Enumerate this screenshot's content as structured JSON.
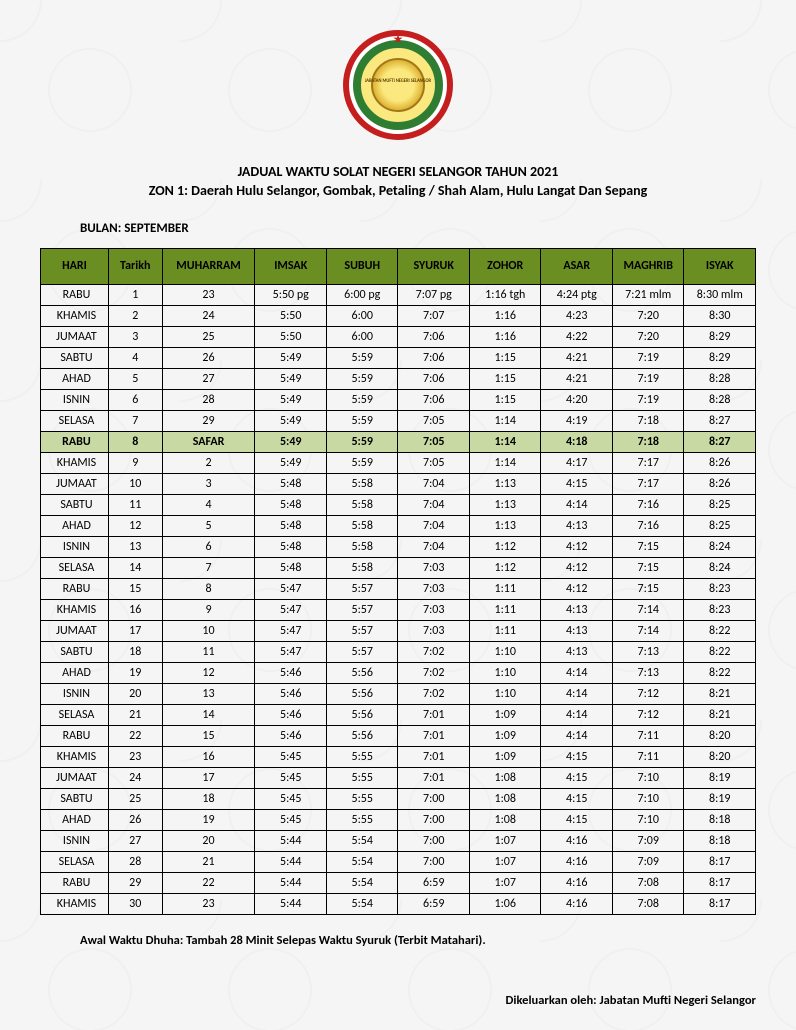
{
  "title_line1": "JADUAL WAKTU SOLAT NEGERI SELANGOR TAHUN 2021",
  "title_line2": "ZON 1: Daerah Hulu Selangor, Gombak, Petaling / Shah Alam, Hulu Langat Dan Sepang",
  "month_label": "BULAN: SEPTEMBER",
  "logo_inner_text": "JABATAN MUFTI NEGERI SELANGOR",
  "columns": [
    "HARI",
    "Tarikh",
    "MUHARRAM",
    "IMSAK",
    "SUBUH",
    "SYURUK",
    "ZOHOR",
    "ASAR",
    "MAGHRIB",
    "ISYAK"
  ],
  "highlight_row_index": 7,
  "rows": [
    [
      "RABU",
      "1",
      "23",
      "5:50 pg",
      "6:00 pg",
      "7:07 pg",
      "1:16 tgh",
      "4:24 ptg",
      "7:21 mlm",
      "8:30 mlm"
    ],
    [
      "KHAMIS",
      "2",
      "24",
      "5:50",
      "6:00",
      "7:07",
      "1:16",
      "4:23",
      "7:20",
      "8:30"
    ],
    [
      "JUMAAT",
      "3",
      "25",
      "5:50",
      "6:00",
      "7:06",
      "1:16",
      "4:22",
      "7:20",
      "8:29"
    ],
    [
      "SABTU",
      "4",
      "26",
      "5:49",
      "5:59",
      "7:06",
      "1:15",
      "4:21",
      "7:19",
      "8:29"
    ],
    [
      "AHAD",
      "5",
      "27",
      "5:49",
      "5:59",
      "7:06",
      "1:15",
      "4:21",
      "7:19",
      "8:28"
    ],
    [
      "ISNIN",
      "6",
      "28",
      "5:49",
      "5:59",
      "7:06",
      "1:15",
      "4:20",
      "7:19",
      "8:28"
    ],
    [
      "SELASA",
      "7",
      "29",
      "5:49",
      "5:59",
      "7:05",
      "1:14",
      "4:19",
      "7:18",
      "8:27"
    ],
    [
      "RABU",
      "8",
      "SAFAR",
      "5:49",
      "5:59",
      "7:05",
      "1:14",
      "4:18",
      "7:18",
      "8:27"
    ],
    [
      "KHAMIS",
      "9",
      "2",
      "5:49",
      "5:59",
      "7:05",
      "1:14",
      "4:17",
      "7:17",
      "8:26"
    ],
    [
      "JUMAAT",
      "10",
      "3",
      "5:48",
      "5:58",
      "7:04",
      "1:13",
      "4:15",
      "7:17",
      "8:26"
    ],
    [
      "SABTU",
      "11",
      "4",
      "5:48",
      "5:58",
      "7:04",
      "1:13",
      "4:14",
      "7:16",
      "8:25"
    ],
    [
      "AHAD",
      "12",
      "5",
      "5:48",
      "5:58",
      "7:04",
      "1:13",
      "4:13",
      "7:16",
      "8:25"
    ],
    [
      "ISNIN",
      "13",
      "6",
      "5:48",
      "5:58",
      "7:04",
      "1:12",
      "4:12",
      "7:15",
      "8:24"
    ],
    [
      "SELASA",
      "14",
      "7",
      "5:48",
      "5:58",
      "7:03",
      "1:12",
      "4:12",
      "7:15",
      "8:24"
    ],
    [
      "RABU",
      "15",
      "8",
      "5:47",
      "5:57",
      "7:03",
      "1:11",
      "4:12",
      "7:15",
      "8:23"
    ],
    [
      "KHAMIS",
      "16",
      "9",
      "5:47",
      "5:57",
      "7:03",
      "1:11",
      "4:13",
      "7:14",
      "8:23"
    ],
    [
      "JUMAAT",
      "17",
      "10",
      "5:47",
      "5:57",
      "7:03",
      "1:11",
      "4:13",
      "7:14",
      "8:22"
    ],
    [
      "SABTU",
      "18",
      "11",
      "5:47",
      "5:57",
      "7:02",
      "1:10",
      "4:13",
      "7:13",
      "8:22"
    ],
    [
      "AHAD",
      "19",
      "12",
      "5:46",
      "5:56",
      "7:02",
      "1:10",
      "4:14",
      "7:13",
      "8:22"
    ],
    [
      "ISNIN",
      "20",
      "13",
      "5:46",
      "5:56",
      "7:02",
      "1:10",
      "4:14",
      "7:12",
      "8:21"
    ],
    [
      "SELASA",
      "21",
      "14",
      "5:46",
      "5:56",
      "7:01",
      "1:09",
      "4:14",
      "7:12",
      "8:21"
    ],
    [
      "RABU",
      "22",
      "15",
      "5:46",
      "5:56",
      "7:01",
      "1:09",
      "4:14",
      "7:11",
      "8:20"
    ],
    [
      "KHAMIS",
      "23",
      "16",
      "5:45",
      "5:55",
      "7:01",
      "1:09",
      "4:15",
      "7:11",
      "8:20"
    ],
    [
      "JUMAAT",
      "24",
      "17",
      "5:45",
      "5:55",
      "7:01",
      "1:08",
      "4:15",
      "7:10",
      "8:19"
    ],
    [
      "SABTU",
      "25",
      "18",
      "5:45",
      "5:55",
      "7:00",
      "1:08",
      "4:15",
      "7:10",
      "8:19"
    ],
    [
      "AHAD",
      "26",
      "19",
      "5:45",
      "5:55",
      "7:00",
      "1:08",
      "4:15",
      "7:10",
      "8:18"
    ],
    [
      "ISNIN",
      "27",
      "20",
      "5:44",
      "5:54",
      "7:00",
      "1:07",
      "4:16",
      "7:09",
      "8:18"
    ],
    [
      "SELASA",
      "28",
      "21",
      "5:44",
      "5:54",
      "7:00",
      "1:07",
      "4:16",
      "7:09",
      "8:17"
    ],
    [
      "RABU",
      "29",
      "22",
      "5:44",
      "5:54",
      "6:59",
      "1:07",
      "4:16",
      "7:08",
      "8:17"
    ],
    [
      "KHAMIS",
      "30",
      "23",
      "5:44",
      "5:54",
      "6:59",
      "1:06",
      "4:16",
      "7:08",
      "8:17"
    ]
  ],
  "footnote": "Awal Waktu Dhuha: Tambah 28 Minit Selepas Waktu Syuruk (Terbit Matahari).",
  "issued_by": "Dikeluarkan oleh: Jabatan Mufti Negeri Selangor",
  "colors": {
    "header_bg": "#6b8e23",
    "highlight_bg": "#c8d9a3",
    "border": "#000000",
    "page_bg": "#f5f5f5"
  }
}
